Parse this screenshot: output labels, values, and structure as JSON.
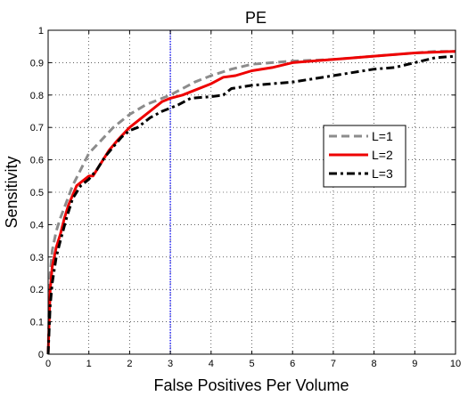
{
  "chart_data": {
    "type": "line",
    "title": "PE",
    "xlabel": "False Positives Per Volume",
    "ylabel": "Sensitivity",
    "xlim": [
      0,
      10
    ],
    "ylim": [
      0,
      1
    ],
    "x_ticks": [
      0,
      1,
      2,
      3,
      4,
      5,
      6,
      7,
      8,
      9,
      10
    ],
    "y_ticks": [
      0,
      0.1,
      0.2,
      0.3,
      0.4,
      0.5,
      0.6,
      0.7,
      0.8,
      0.9,
      1
    ],
    "x_tick_labels": [
      "0",
      "1",
      "2",
      "3",
      "4",
      "5",
      "6",
      "7",
      "8",
      "9",
      "10"
    ],
    "y_tick_labels": [
      "0",
      "0.1",
      "0.2",
      "0.3",
      "0.4",
      "0.5",
      "0.6",
      "0.7",
      "0.8",
      "0.9",
      "1"
    ],
    "grid": true,
    "legend_position": "right-middle",
    "reference_line": {
      "x": 3,
      "color": "#2a2aff",
      "style": "dotted"
    },
    "series": [
      {
        "name": "L=1",
        "color": "#8c8c8c",
        "style": "dashed",
        "points": [
          [
            0,
            0
          ],
          [
            0.02,
            0.12
          ],
          [
            0.05,
            0.25
          ],
          [
            0.1,
            0.32
          ],
          [
            0.2,
            0.38
          ],
          [
            0.3,
            0.42
          ],
          [
            0.45,
            0.47
          ],
          [
            0.6,
            0.52
          ],
          [
            0.8,
            0.57
          ],
          [
            1.0,
            0.62
          ],
          [
            1.3,
            0.66
          ],
          [
            1.6,
            0.7
          ],
          [
            2.0,
            0.74
          ],
          [
            2.4,
            0.77
          ],
          [
            2.8,
            0.79
          ],
          [
            3.0,
            0.8
          ],
          [
            3.3,
            0.82
          ],
          [
            3.6,
            0.84
          ],
          [
            4.0,
            0.86
          ],
          [
            4.5,
            0.88
          ],
          [
            5.0,
            0.895
          ],
          [
            5.5,
            0.9
          ],
          [
            6.0,
            0.905
          ],
          [
            7.0,
            0.91
          ],
          [
            8.0,
            0.92
          ],
          [
            9.0,
            0.93
          ],
          [
            9.5,
            0.935
          ],
          [
            10.0,
            0.935
          ]
        ]
      },
      {
        "name": "L=2",
        "color": "#ee0000",
        "style": "solid",
        "points": [
          [
            0,
            0
          ],
          [
            0.02,
            0.08
          ],
          [
            0.05,
            0.2
          ],
          [
            0.1,
            0.27
          ],
          [
            0.2,
            0.33
          ],
          [
            0.3,
            0.37
          ],
          [
            0.4,
            0.42
          ],
          [
            0.5,
            0.46
          ],
          [
            0.6,
            0.49
          ],
          [
            0.7,
            0.52
          ],
          [
            0.9,
            0.54
          ],
          [
            1.0,
            0.55
          ],
          [
            1.1,
            0.55
          ],
          [
            1.3,
            0.59
          ],
          [
            1.5,
            0.63
          ],
          [
            1.7,
            0.66
          ],
          [
            2.0,
            0.7
          ],
          [
            2.3,
            0.73
          ],
          [
            2.5,
            0.75
          ],
          [
            2.8,
            0.78
          ],
          [
            3.0,
            0.79
          ],
          [
            3.3,
            0.8
          ],
          [
            3.5,
            0.81
          ],
          [
            4.0,
            0.835
          ],
          [
            4.3,
            0.855
          ],
          [
            4.6,
            0.86
          ],
          [
            5.0,
            0.875
          ],
          [
            5.5,
            0.885
          ],
          [
            6.0,
            0.9
          ],
          [
            7.0,
            0.91
          ],
          [
            8.0,
            0.92
          ],
          [
            9.0,
            0.93
          ],
          [
            10.0,
            0.935
          ]
        ]
      },
      {
        "name": "L=3",
        "color": "#000000",
        "style": "dashdot",
        "points": [
          [
            0,
            0
          ],
          [
            0.02,
            0.06
          ],
          [
            0.05,
            0.15
          ],
          [
            0.1,
            0.22
          ],
          [
            0.2,
            0.3
          ],
          [
            0.3,
            0.35
          ],
          [
            0.45,
            0.42
          ],
          [
            0.6,
            0.48
          ],
          [
            0.8,
            0.52
          ],
          [
            1.0,
            0.54
          ],
          [
            1.2,
            0.57
          ],
          [
            1.4,
            0.61
          ],
          [
            1.6,
            0.64
          ],
          [
            1.8,
            0.67
          ],
          [
            2.0,
            0.69
          ],
          [
            2.2,
            0.7
          ],
          [
            2.5,
            0.73
          ],
          [
            2.8,
            0.75
          ],
          [
            3.0,
            0.76
          ],
          [
            3.2,
            0.77
          ],
          [
            3.5,
            0.79
          ],
          [
            4.0,
            0.795
          ],
          [
            4.3,
            0.8
          ],
          [
            4.5,
            0.82
          ],
          [
            5.0,
            0.83
          ],
          [
            5.5,
            0.835
          ],
          [
            6.0,
            0.84
          ],
          [
            6.5,
            0.85
          ],
          [
            7.0,
            0.86
          ],
          [
            7.5,
            0.87
          ],
          [
            8.0,
            0.88
          ],
          [
            8.5,
            0.885
          ],
          [
            9.0,
            0.9
          ],
          [
            9.5,
            0.915
          ],
          [
            10.0,
            0.92
          ]
        ]
      }
    ]
  }
}
